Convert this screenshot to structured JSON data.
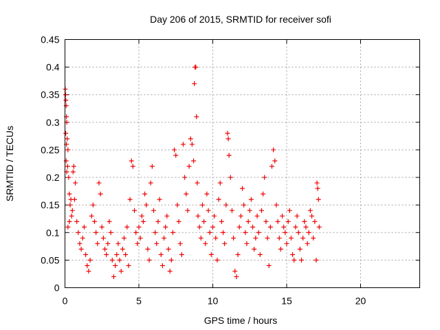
{
  "chart_data": {
    "type": "scatter",
    "title": "Day 206 of 2015, SRMTID for receiver sofi",
    "xlabel": "GPS time / hours",
    "ylabel": "SRMTID / TECUs",
    "xlim": [
      0,
      24
    ],
    "ylim": [
      0,
      0.45
    ],
    "xticks": [
      0,
      5,
      10,
      15,
      20
    ],
    "xtick_labels": [
      "0",
      "5",
      "10",
      "15",
      "20"
    ],
    "yticks": [
      0,
      0.05,
      0.1,
      0.15,
      0.2,
      0.25,
      0.3,
      0.35,
      0.4,
      0.45
    ],
    "ytick_labels": [
      "0",
      "0.05",
      "0.1",
      "0.15",
      "0.2",
      "0.25",
      "0.3",
      "0.35",
      "0.4",
      "0.45"
    ],
    "grid": true,
    "marker": "+",
    "marker_color": "#ee0000",
    "series": [
      {
        "name": "SRMTID",
        "points": [
          [
            0.02,
            0.36
          ],
          [
            0.04,
            0.35
          ],
          [
            0.06,
            0.34
          ],
          [
            0.08,
            0.33
          ],
          [
            0.1,
            0.31
          ],
          [
            0.12,
            0.3
          ],
          [
            0.05,
            0.28
          ],
          [
            0.15,
            0.27
          ],
          [
            0.1,
            0.26
          ],
          [
            0.2,
            0.25
          ],
          [
            0.08,
            0.23
          ],
          [
            0.18,
            0.22
          ],
          [
            0.12,
            0.21
          ],
          [
            0.25,
            0.2
          ],
          [
            0.3,
            0.17
          ],
          [
            0.35,
            0.15
          ],
          [
            0.4,
            0.16
          ],
          [
            0.45,
            0.13
          ],
          [
            0.3,
            0.12
          ],
          [
            0.2,
            0.11
          ],
          [
            0.5,
            0.14
          ],
          [
            0.6,
            0.22
          ],
          [
            0.55,
            0.21
          ],
          [
            0.7,
            0.19
          ],
          [
            0.65,
            0.16
          ],
          [
            0.8,
            0.12
          ],
          [
            0.9,
            0.1
          ],
          [
            1.0,
            0.08
          ],
          [
            1.1,
            0.07
          ],
          [
            1.2,
            0.09
          ],
          [
            1.3,
            0.11
          ],
          [
            1.4,
            0.06
          ],
          [
            1.5,
            0.04
          ],
          [
            1.6,
            0.03
          ],
          [
            1.7,
            0.05
          ],
          [
            1.8,
            0.13
          ],
          [
            1.9,
            0.15
          ],
          [
            2.0,
            0.12
          ],
          [
            2.1,
            0.1
          ],
          [
            2.2,
            0.08
          ],
          [
            2.3,
            0.19
          ],
          [
            2.4,
            0.17
          ],
          [
            2.5,
            0.11
          ],
          [
            2.6,
            0.09
          ],
          [
            2.7,
            0.07
          ],
          [
            2.8,
            0.06
          ],
          [
            2.9,
            0.08
          ],
          [
            3.0,
            0.12
          ],
          [
            3.1,
            0.1
          ],
          [
            3.2,
            0.05
          ],
          [
            3.3,
            0.02
          ],
          [
            3.4,
            0.04
          ],
          [
            3.5,
            0.06
          ],
          [
            3.6,
            0.08
          ],
          [
            3.7,
            0.05
          ],
          [
            3.8,
            0.03
          ],
          [
            3.9,
            0.07
          ],
          [
            4.0,
            0.09
          ],
          [
            4.1,
            0.06
          ],
          [
            4.2,
            0.11
          ],
          [
            4.3,
            0.04
          ],
          [
            4.4,
            0.16
          ],
          [
            4.5,
            0.23
          ],
          [
            4.6,
            0.22
          ],
          [
            4.7,
            0.14
          ],
          [
            4.8,
            0.1
          ],
          [
            4.9,
            0.08
          ],
          [
            5.0,
            0.11
          ],
          [
            5.1,
            0.09
          ],
          [
            5.2,
            0.13
          ],
          [
            5.3,
            0.12
          ],
          [
            5.4,
            0.17
          ],
          [
            5.5,
            0.15
          ],
          [
            5.6,
            0.07
          ],
          [
            5.7,
            0.05
          ],
          [
            5.8,
            0.19
          ],
          [
            5.9,
            0.22
          ],
          [
            6.0,
            0.14
          ],
          [
            6.1,
            0.1
          ],
          [
            6.2,
            0.08
          ],
          [
            6.3,
            0.12
          ],
          [
            6.4,
            0.16
          ],
          [
            6.5,
            0.06
          ],
          [
            6.6,
            0.04
          ],
          [
            6.7,
            0.09
          ],
          [
            6.8,
            0.11
          ],
          [
            6.9,
            0.13
          ],
          [
            7.0,
            0.07
          ],
          [
            7.1,
            0.03
          ],
          [
            7.2,
            0.05
          ],
          [
            7.3,
            0.1
          ],
          [
            7.4,
            0.25
          ],
          [
            7.5,
            0.24
          ],
          [
            7.6,
            0.15
          ],
          [
            7.7,
            0.12
          ],
          [
            7.8,
            0.08
          ],
          [
            7.9,
            0.06
          ],
          [
            8.0,
            0.26
          ],
          [
            8.1,
            0.2
          ],
          [
            8.2,
            0.17
          ],
          [
            8.3,
            0.14
          ],
          [
            8.4,
            0.22
          ],
          [
            8.5,
            0.27
          ],
          [
            8.6,
            0.26
          ],
          [
            8.7,
            0.23
          ],
          [
            8.75,
            0.37
          ],
          [
            8.8,
            0.4
          ],
          [
            8.85,
            0.4
          ],
          [
            8.9,
            0.31
          ],
          [
            8.95,
            0.19
          ],
          [
            9.0,
            0.13
          ],
          [
            9.1,
            0.11
          ],
          [
            9.2,
            0.09
          ],
          [
            9.3,
            0.15
          ],
          [
            9.4,
            0.12
          ],
          [
            9.5,
            0.08
          ],
          [
            9.6,
            0.17
          ],
          [
            9.7,
            0.14
          ],
          [
            9.8,
            0.1
          ],
          [
            9.9,
            0.06
          ],
          [
            10.0,
            0.11
          ],
          [
            10.1,
            0.13
          ],
          [
            10.2,
            0.09
          ],
          [
            10.3,
            0.05
          ],
          [
            10.4,
            0.16
          ],
          [
            10.5,
            0.19
          ],
          [
            10.6,
            0.12
          ],
          [
            10.7,
            0.1
          ],
          [
            10.8,
            0.08
          ],
          [
            10.9,
            0.15
          ],
          [
            11.0,
            0.28
          ],
          [
            11.05,
            0.27
          ],
          [
            11.1,
            0.24
          ],
          [
            11.2,
            0.2
          ],
          [
            11.3,
            0.14
          ],
          [
            11.4,
            0.09
          ],
          [
            11.5,
            0.03
          ],
          [
            11.6,
            0.02
          ],
          [
            11.7,
            0.06
          ],
          [
            11.8,
            0.11
          ],
          [
            11.9,
            0.13
          ],
          [
            12.0,
            0.18
          ],
          [
            12.1,
            0.15
          ],
          [
            12.2,
            0.1
          ],
          [
            12.3,
            0.08
          ],
          [
            12.4,
            0.12
          ],
          [
            12.5,
            0.14
          ],
          [
            12.6,
            0.16
          ],
          [
            12.7,
            0.11
          ],
          [
            12.8,
            0.07
          ],
          [
            12.9,
            0.09
          ],
          [
            13.0,
            0.13
          ],
          [
            13.1,
            0.1
          ],
          [
            13.2,
            0.06
          ],
          [
            13.3,
            0.14
          ],
          [
            13.4,
            0.17
          ],
          [
            13.5,
            0.2
          ],
          [
            13.6,
            0.12
          ],
          [
            13.7,
            0.09
          ],
          [
            13.8,
            0.04
          ],
          [
            13.9,
            0.11
          ],
          [
            14.0,
            0.22
          ],
          [
            14.1,
            0.25
          ],
          [
            14.2,
            0.23
          ],
          [
            14.3,
            0.15
          ],
          [
            14.4,
            0.12
          ],
          [
            14.5,
            0.09
          ],
          [
            14.6,
            0.07
          ],
          [
            14.7,
            0.13
          ],
          [
            14.8,
            0.11
          ],
          [
            14.9,
            0.1
          ],
          [
            15.0,
            0.08
          ],
          [
            15.1,
            0.12
          ],
          [
            15.2,
            0.14
          ],
          [
            15.3,
            0.09
          ],
          [
            15.4,
            0.06
          ],
          [
            15.5,
            0.05
          ],
          [
            15.6,
            0.11
          ],
          [
            15.7,
            0.13
          ],
          [
            15.8,
            0.1
          ],
          [
            15.9,
            0.07
          ],
          [
            16.0,
            0.05
          ],
          [
            16.1,
            0.09
          ],
          [
            16.2,
            0.12
          ],
          [
            16.3,
            0.11
          ],
          [
            16.4,
            0.08
          ],
          [
            16.5,
            0.1
          ],
          [
            16.6,
            0.14
          ],
          [
            16.7,
            0.13
          ],
          [
            16.8,
            0.09
          ],
          [
            16.9,
            0.12
          ],
          [
            17.0,
            0.05
          ],
          [
            17.05,
            0.19
          ],
          [
            17.1,
            0.18
          ],
          [
            17.15,
            0.16
          ],
          [
            17.2,
            0.11
          ]
        ]
      }
    ]
  }
}
